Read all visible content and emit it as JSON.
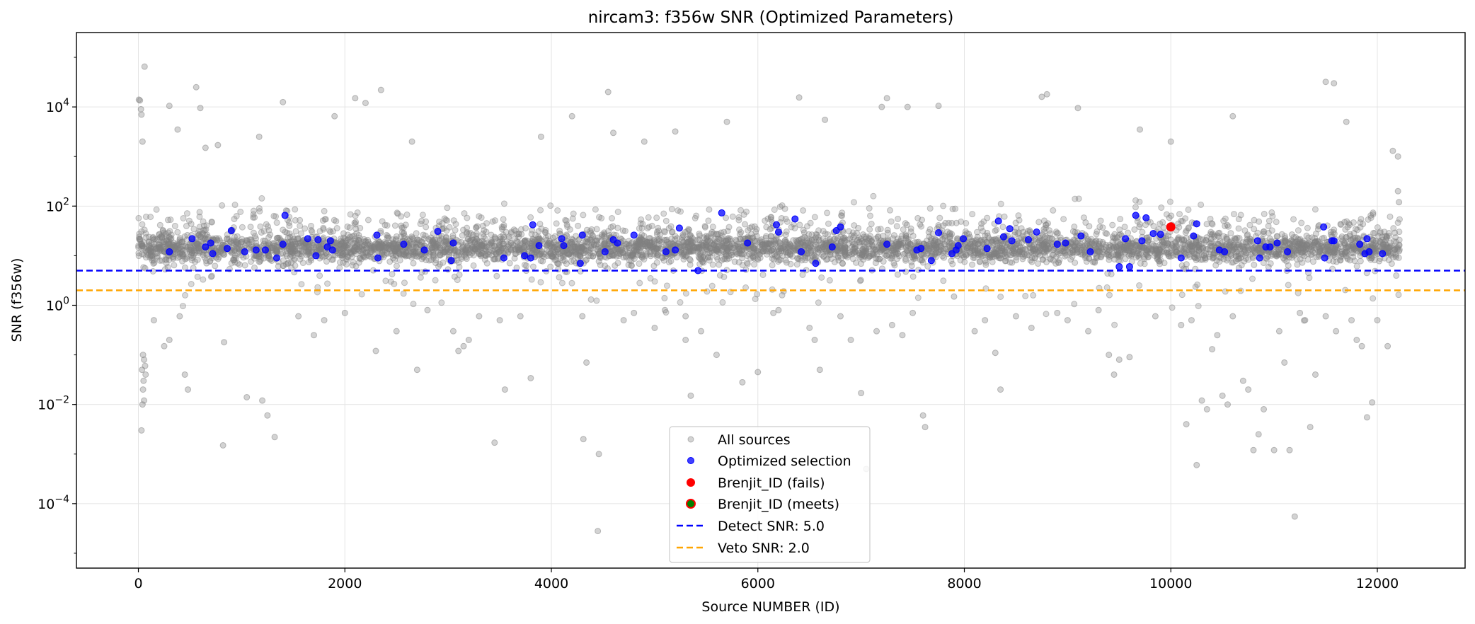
{
  "chart_data": {
    "type": "scatter",
    "title": "nircam3: f356w SNR (Optimized Parameters)",
    "xlabel": "Source NUMBER (ID)",
    "ylabel": "SNR (f356w)",
    "xlim": [
      -600,
      12850
    ],
    "ylim_log10": [
      -5.3,
      5.5
    ],
    "y_scale": "log",
    "xticks": [
      0,
      2000,
      4000,
      6000,
      8000,
      10000,
      12000
    ],
    "xtick_labels": [
      "0",
      "2000",
      "4000",
      "6000",
      "8000",
      "10000",
      "12000"
    ],
    "yticks_exp": [
      -4,
      -2,
      0,
      2,
      4
    ],
    "ytick_labels": [
      {
        "base": "10",
        "exp": "−4"
      },
      {
        "base": "10",
        "exp": "−2"
      },
      {
        "base": "10",
        "exp": "0"
      },
      {
        "base": "10",
        "exp": "2"
      },
      {
        "base": "10",
        "exp": "4"
      }
    ],
    "grid": true,
    "legend_position": "lower center",
    "series": [
      {
        "name": "All sources",
        "color": "#808080",
        "alpha": 0.35,
        "marker": "circle",
        "points": [
          [
            5,
            14000
          ],
          [
            15,
            13500
          ],
          [
            30,
            7000
          ],
          [
            60,
            65000
          ],
          [
            25,
            9000
          ],
          [
            40,
            2000
          ],
          [
            45,
            0.1
          ],
          [
            55,
            0.08
          ],
          [
            35,
            0.05
          ],
          [
            50,
            0.03
          ],
          [
            45,
            0.02
          ],
          [
            40,
            0.01
          ],
          [
            30,
            0.003
          ],
          [
            65,
            0.06
          ],
          [
            70,
            0.04
          ],
          [
            55,
            0.012
          ],
          [
            300,
            10500
          ],
          [
            380,
            3500
          ],
          [
            560,
            25000
          ],
          [
            600,
            9500
          ],
          [
            650,
            1500
          ],
          [
            770,
            1700
          ],
          [
            820,
            0.0015
          ],
          [
            830,
            0.18
          ],
          [
            1050,
            0.014
          ],
          [
            1170,
            2500
          ],
          [
            1200,
            0.012
          ],
          [
            1250,
            0.006
          ],
          [
            1320,
            0.0022
          ],
          [
            1400,
            12500
          ],
          [
            1900,
            6500
          ],
          [
            2100,
            15000
          ],
          [
            2200,
            12000
          ],
          [
            2350,
            22000
          ],
          [
            2650,
            2000
          ],
          [
            2700,
            0.05
          ],
          [
            2800,
            0.8
          ],
          [
            3100,
            0.12
          ],
          [
            3150,
            0.15
          ],
          [
            3200,
            0.2
          ],
          [
            3550,
            0.02
          ],
          [
            3450,
            0.0017
          ],
          [
            3500,
            0.5
          ],
          [
            3800,
            0.034
          ],
          [
            3900,
            2500
          ],
          [
            4200,
            6500
          ],
          [
            4300,
            0.6
          ],
          [
            4340,
            0.07
          ],
          [
            4310,
            0.002
          ],
          [
            4460,
            0.001
          ],
          [
            4450,
            2.8e-05
          ],
          [
            4550,
            20000
          ],
          [
            4600,
            3000
          ],
          [
            4900,
            2000
          ],
          [
            5000,
            0.35
          ],
          [
            5200,
            3200
          ],
          [
            5300,
            0.6
          ],
          [
            5300,
            0.2
          ],
          [
            5350,
            0.015
          ],
          [
            5450,
            0.3
          ],
          [
            5600,
            0.1
          ],
          [
            5700,
            5000
          ],
          [
            5850,
            0.028
          ],
          [
            6000,
            0.045
          ],
          [
            6200,
            0.8
          ],
          [
            6400,
            15500
          ],
          [
            6500,
            0.35
          ],
          [
            6550,
            0.2
          ],
          [
            6600,
            0.05
          ],
          [
            6650,
            5500
          ],
          [
            6900,
            0.2
          ],
          [
            7000,
            0.017
          ],
          [
            7050,
            0.0005
          ],
          [
            7200,
            10000
          ],
          [
            7250,
            15000
          ],
          [
            7300,
            0.4
          ],
          [
            7450,
            10000
          ],
          [
            7600,
            0.006
          ],
          [
            7620,
            0.0035
          ],
          [
            7750,
            10500
          ],
          [
            7900,
            1.5
          ],
          [
            8100,
            0.3
          ],
          [
            8200,
            0.5
          ],
          [
            8300,
            0.11
          ],
          [
            8350,
            0.02
          ],
          [
            8650,
            0.35
          ],
          [
            8750,
            16000
          ],
          [
            8800,
            18000
          ],
          [
            9000,
            0.5
          ],
          [
            9100,
            9500
          ],
          [
            9300,
            0.8
          ],
          [
            9400,
            0.1
          ],
          [
            9450,
            0.04
          ],
          [
            9500,
            0.08
          ],
          [
            9600,
            0.09
          ],
          [
            9700,
            3500
          ],
          [
            10000,
            2000
          ],
          [
            10100,
            0.4
          ],
          [
            10150,
            0.004
          ],
          [
            10200,
            0.5
          ],
          [
            10250,
            0.0006
          ],
          [
            10300,
            0.012
          ],
          [
            10350,
            0.008
          ],
          [
            10400,
            0.13
          ],
          [
            10450,
            0.25
          ],
          [
            10500,
            0.015
          ],
          [
            10550,
            0.01
          ],
          [
            10600,
            6500
          ],
          [
            10700,
            0.03
          ],
          [
            10750,
            0.02
          ],
          [
            10800,
            0.0012
          ],
          [
            10850,
            0.0025
          ],
          [
            10900,
            0.008
          ],
          [
            11000,
            0.0012
          ],
          [
            11050,
            0.3
          ],
          [
            11100,
            0.07
          ],
          [
            11150,
            0.0012
          ],
          [
            11200,
            5.5e-05
          ],
          [
            11250,
            0.7
          ],
          [
            11300,
            0.5
          ],
          [
            11350,
            0.0035
          ],
          [
            11400,
            0.04
          ],
          [
            11500,
            32000
          ],
          [
            11580,
            30000
          ],
          [
            11600,
            0.3
          ],
          [
            11700,
            5000
          ],
          [
            11800,
            0.2
          ],
          [
            11850,
            0.15
          ],
          [
            11900,
            0.0055
          ],
          [
            11950,
            0.011
          ],
          [
            12000,
            0.5
          ],
          [
            12100,
            0.15
          ],
          [
            12200,
            1000
          ],
          [
            12150,
            1300
          ],
          [
            12200,
            200
          ],
          [
            12210,
            120
          ],
          [
            150,
            0.5
          ],
          [
            250,
            0.15
          ],
          [
            300,
            0.2
          ],
          [
            400,
            0.6
          ],
          [
            450,
            0.04
          ],
          [
            480,
            0.02
          ],
          [
            1550,
            0.6
          ],
          [
            1700,
            0.25
          ],
          [
            1800,
            0.5
          ],
          [
            2000,
            0.7
          ],
          [
            2300,
            0.12
          ],
          [
            2500,
            0.3
          ],
          [
            3050,
            0.3
          ],
          [
            3300,
            0.6
          ],
          [
            3700,
            0.6
          ],
          [
            4700,
            0.5
          ],
          [
            4800,
            0.7
          ],
          [
            5100,
            0.8
          ],
          [
            6150,
            0.7
          ],
          [
            6800,
            0.6
          ],
          [
            7150,
            0.3
          ],
          [
            7400,
            0.25
          ],
          [
            7500,
            0.7
          ],
          [
            8500,
            0.6
          ],
          [
            8900,
            0.7
          ],
          [
            9200,
            0.3
          ],
          [
            9850,
            0.6
          ],
          [
            10600,
            0.6
          ],
          [
            11500,
            0.6
          ],
          [
            11750,
            0.5
          ]
        ]
      },
      {
        "name": "Optimized selection",
        "color": "#0000ff",
        "alpha": 0.75,
        "marker": "circle",
        "points": [
          [
            300,
            12
          ],
          [
            520,
            22
          ],
          [
            650,
            15
          ],
          [
            700,
            18
          ],
          [
            720,
            11
          ],
          [
            860,
            14
          ],
          [
            900,
            32
          ],
          [
            1030,
            12
          ],
          [
            1140,
            13
          ],
          [
            1230,
            13
          ],
          [
            1340,
            9
          ],
          [
            1400,
            17
          ],
          [
            1420,
            65
          ],
          [
            1640,
            22
          ],
          [
            1720,
            10
          ],
          [
            1740,
            21
          ],
          [
            1830,
            15
          ],
          [
            1860,
            20
          ],
          [
            1880,
            13
          ],
          [
            2310,
            26
          ],
          [
            2320,
            9
          ],
          [
            2570,
            17
          ],
          [
            2770,
            13
          ],
          [
            2900,
            31
          ],
          [
            3030,
            8
          ],
          [
            3050,
            18
          ],
          [
            3540,
            9
          ],
          [
            3740,
            10
          ],
          [
            3800,
            9
          ],
          [
            3820,
            42
          ],
          [
            3880,
            16
          ],
          [
            4100,
            22
          ],
          [
            4120,
            16
          ],
          [
            4280,
            7
          ],
          [
            4300,
            26
          ],
          [
            4520,
            12
          ],
          [
            4600,
            21
          ],
          [
            4640,
            18
          ],
          [
            4800,
            26
          ],
          [
            5110,
            12
          ],
          [
            5200,
            13
          ],
          [
            5240,
            36
          ],
          [
            5420,
            5
          ],
          [
            5650,
            73
          ],
          [
            5900,
            18
          ],
          [
            6180,
            42
          ],
          [
            6200,
            30
          ],
          [
            6360,
            55
          ],
          [
            6420,
            12
          ],
          [
            6560,
            7
          ],
          [
            6720,
            15
          ],
          [
            6760,
            32
          ],
          [
            6800,
            38
          ],
          [
            7250,
            17
          ],
          [
            7540,
            13
          ],
          [
            7580,
            14
          ],
          [
            7680,
            8
          ],
          [
            7750,
            29
          ],
          [
            7880,
            11
          ],
          [
            7920,
            13
          ],
          [
            7940,
            16
          ],
          [
            7990,
            22
          ],
          [
            8220,
            14
          ],
          [
            8330,
            50
          ],
          [
            8380,
            24
          ],
          [
            8440,
            35
          ],
          [
            8460,
            20
          ],
          [
            8620,
            21
          ],
          [
            8700,
            30
          ],
          [
            8900,
            17
          ],
          [
            8980,
            18
          ],
          [
            9130,
            25
          ],
          [
            9220,
            12
          ],
          [
            9500,
            6
          ],
          [
            9560,
            22
          ],
          [
            9600,
            6
          ],
          [
            9660,
            65
          ],
          [
            9720,
            20
          ],
          [
            9760,
            58
          ],
          [
            9830,
            28
          ],
          [
            9900,
            27
          ],
          [
            10100,
            9
          ],
          [
            10220,
            25
          ],
          [
            10250,
            44
          ],
          [
            10470,
            13
          ],
          [
            10520,
            12
          ],
          [
            10840,
            20
          ],
          [
            10860,
            9
          ],
          [
            10920,
            15
          ],
          [
            10960,
            15
          ],
          [
            11030,
            18
          ],
          [
            11130,
            12
          ],
          [
            11480,
            38
          ],
          [
            11490,
            9
          ],
          [
            11560,
            20
          ],
          [
            11580,
            20
          ],
          [
            11830,
            17
          ],
          [
            11880,
            11
          ],
          [
            11900,
            22
          ],
          [
            11920,
            12
          ],
          [
            12050,
            11
          ]
        ]
      },
      {
        "name": "Brenjit_ID (fails)",
        "color": "#ff0000",
        "marker": "circle",
        "points": [
          [
            10000,
            38
          ]
        ]
      },
      {
        "name": "Brenjit_ID (meets)",
        "color": "#008000",
        "edgecolor": "#ff0000",
        "marker": "circle",
        "points": []
      }
    ],
    "hlines": [
      {
        "name": "Detect SNR: 5.0",
        "y": 5.0,
        "color": "#0000ff",
        "style": "dashed"
      },
      {
        "name": "Veto SNR: 2.0",
        "y": 2.0,
        "color": "#ffa500",
        "style": "dashed"
      }
    ]
  }
}
